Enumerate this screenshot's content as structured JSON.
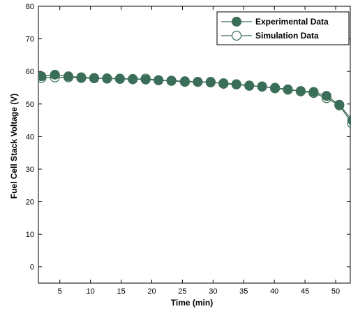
{
  "chart_data": {
    "type": "line",
    "xlabel": "Time (min)",
    "ylabel": "Fuel Cell Stack Voltage (V)",
    "xlim": [
      1.5,
      52.5
    ],
    "ylim": [
      -5,
      80
    ],
    "xticks": [
      5,
      10,
      15,
      20,
      25,
      30,
      35,
      40,
      45,
      50
    ],
    "yticks": [
      0,
      10,
      20,
      30,
      40,
      50,
      60,
      70,
      80
    ],
    "grid": false,
    "legend": "top-right",
    "colors": {
      "series": "#3b6e58",
      "axis": "#000000"
    },
    "series": [
      {
        "name": "Experimental Data",
        "marker": "filled-circle",
        "x": [
          2.0,
          4.2,
          6.4,
          8.5,
          10.6,
          12.7,
          14.8,
          16.9,
          19.0,
          21.1,
          23.2,
          25.4,
          27.5,
          29.6,
          31.7,
          33.8,
          35.9,
          38.0,
          40.1,
          42.2,
          44.3,
          46.4,
          48.5,
          50.6,
          52.7
        ],
        "y": [
          58.5,
          59.0,
          58.5,
          58.2,
          58.0,
          57.9,
          57.8,
          57.7,
          57.5,
          57.3,
          57.2,
          57.0,
          56.8,
          56.6,
          56.4,
          56.1,
          55.7,
          55.3,
          55.0,
          54.5,
          54.0,
          53.7,
          52.5,
          49.8,
          45.0
        ]
      },
      {
        "name": "Simulation Data",
        "marker": "open-circle",
        "x": [
          2.0,
          4.2,
          6.4,
          8.5,
          10.6,
          12.7,
          14.8,
          16.9,
          19.0,
          21.1,
          23.2,
          25.4,
          27.5,
          29.6,
          31.7,
          33.8,
          35.9,
          38.0,
          40.1,
          42.2,
          44.3,
          46.4,
          48.5,
          50.6,
          52.7
        ],
        "y": [
          58.0,
          58.2,
          58.2,
          58.0,
          57.9,
          57.8,
          57.7,
          57.6,
          57.8,
          57.3,
          57.1,
          56.8,
          56.8,
          56.8,
          56.2,
          56.0,
          55.6,
          55.4,
          54.8,
          54.4,
          53.9,
          53.4,
          51.8,
          49.6,
          44.0
        ]
      }
    ]
  }
}
